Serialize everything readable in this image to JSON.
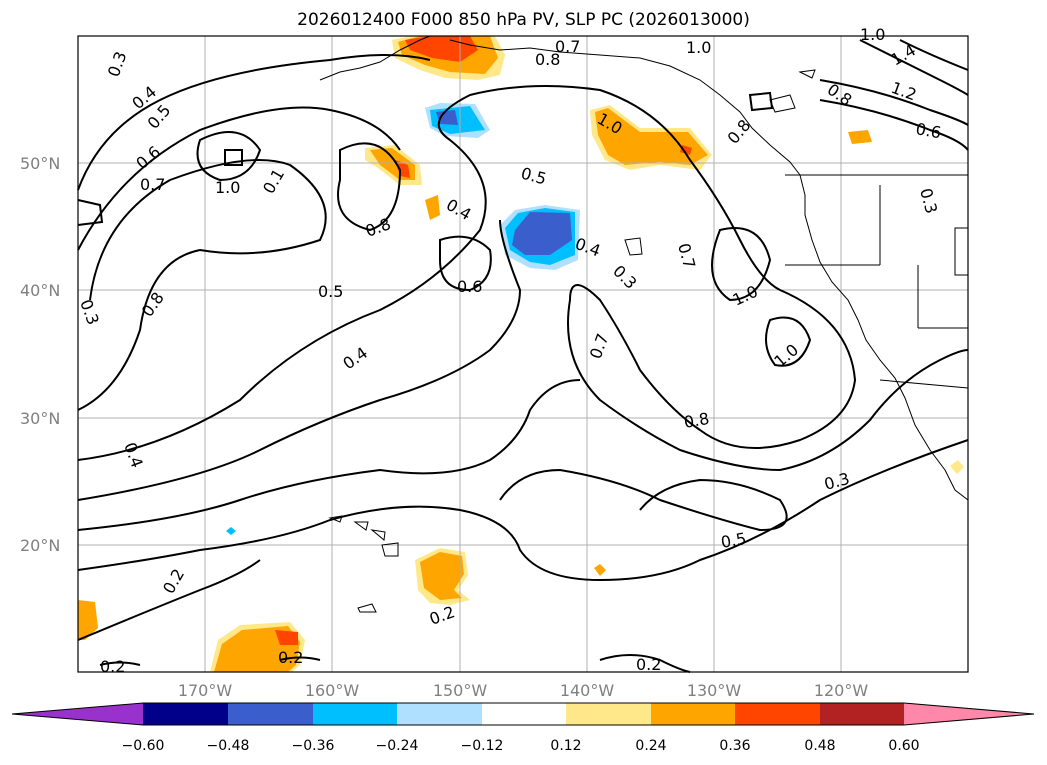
{
  "title": "2026012400 F000 850 hPa PV, SLP PC (2026013000)",
  "map": {
    "lat_labels": [
      "50°N",
      "40°N",
      "30°N",
      "20°N"
    ],
    "lon_labels": [
      "170°W",
      "160°W",
      "150°W",
      "140°W",
      "130°W",
      "120°W"
    ],
    "contour_labels": [
      "0.3",
      "0.4",
      "0.5",
      "0.6",
      "0.7",
      "1.0",
      "0.1",
      "0.8",
      "0.5",
      "0.4",
      "0.8",
      "0.6",
      "0.5",
      "0.4",
      "0.3",
      "0.7",
      "1.0",
      "0.7",
      "1.0",
      "0.8",
      "0.5",
      "0.3",
      "1.0",
      "0.8",
      "1.2",
      "1.4",
      "0.6",
      "0.3",
      "0.4",
      "0.3",
      "0.8",
      "0.2",
      "0.2",
      "0.2",
      "0.2",
      "0.2",
      "1.0",
      "0.8",
      "0.4",
      "1.0",
      "0.7"
    ],
    "colors": {
      "land": "#ffffff",
      "coast": "#000000",
      "grid": "#b0b0b0",
      "purple": "#9932cc",
      "navy": "#00008b",
      "blue": "#3a5fcd",
      "sky": "#00bfff",
      "paleblue": "#b0e0ff",
      "white": "#ffffff",
      "paleyellow": "#ffe88a",
      "orange": "#ffa500",
      "redorange": "#ff4500",
      "firebrick": "#b22222",
      "pink": "#ff88aa"
    }
  },
  "colorbar": {
    "ticks": [
      "−0.60",
      "−0.48",
      "−0.36",
      "−0.24",
      "−0.12",
      "0.12",
      "0.24",
      "0.36",
      "0.48",
      "0.60"
    ],
    "colors": [
      "#9932cc",
      "#00008b",
      "#3a5fcd",
      "#00bfff",
      "#b0e0ff",
      "#ffffff",
      "#ffe88a",
      "#ffa500",
      "#ff4500",
      "#b22222",
      "#ff88aa"
    ]
  }
}
